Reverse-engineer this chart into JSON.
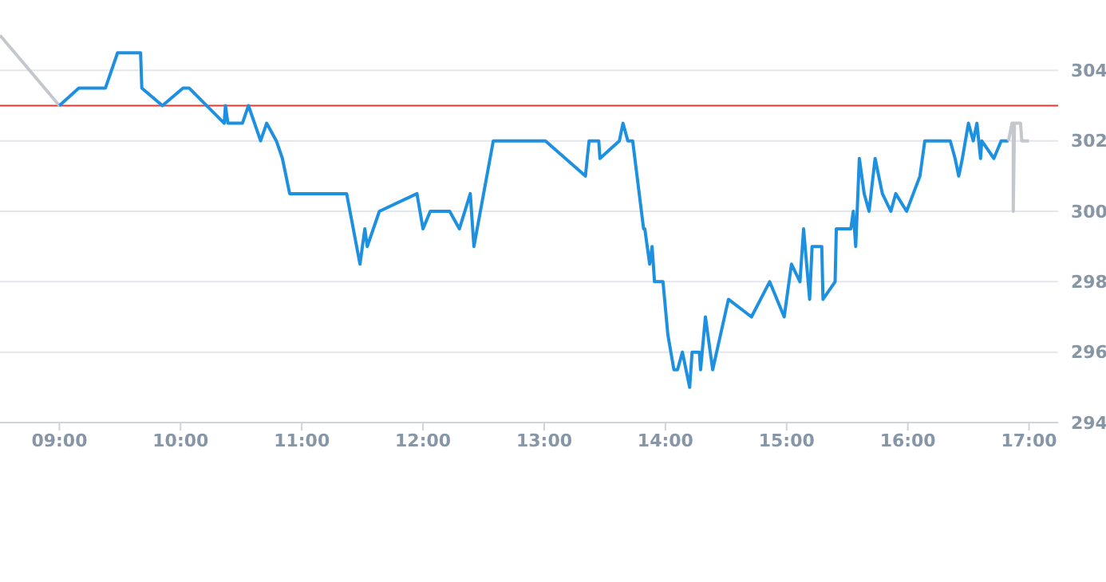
{
  "chart_data": {
    "type": "line",
    "xlim": [
      8.51,
      17.24
    ],
    "xticks": [
      {
        "value": 9,
        "label": "09:00"
      },
      {
        "value": 10,
        "label": "10:00"
      },
      {
        "value": 11,
        "label": "11:00"
      },
      {
        "value": 12,
        "label": "12:00"
      },
      {
        "value": 13,
        "label": "13:00"
      },
      {
        "value": 14,
        "label": "14:00"
      },
      {
        "value": 15,
        "label": "15:00"
      },
      {
        "value": 16,
        "label": "16:00"
      },
      {
        "value": 17,
        "label": "17:00"
      }
    ],
    "ylim": [
      294,
      306
    ],
    "yticks": [
      294,
      296,
      298,
      300,
      302,
      304
    ],
    "grid": "y",
    "marker": "none",
    "line_style": "solid",
    "ref_lines": [
      {
        "axis": "y",
        "value": 303,
        "color": "#e53935"
      }
    ],
    "series": [
      {
        "color": "#c4c8cc",
        "x": [
          8.51,
          9.0
        ],
        "values": [
          305,
          303
        ]
      },
      {
        "color": "#1e90e0",
        "x": [
          9.0,
          9.16,
          9.38,
          9.48,
          9.67,
          9.68,
          9.85,
          10.02,
          10.07,
          10.36,
          10.37,
          10.39,
          10.51,
          10.56,
          10.66,
          10.71,
          10.79,
          10.84,
          10.9,
          11.37,
          11.48,
          11.52,
          11.54,
          11.64,
          11.95,
          12.0,
          12.06,
          12.22,
          12.3,
          12.39,
          12.42,
          12.58,
          13.01,
          13.34,
          13.37,
          13.45,
          13.46,
          13.62,
          13.65,
          13.69,
          13.73,
          13.82,
          13.83,
          13.87,
          13.89,
          13.91,
          13.98,
          14.02,
          14.07,
          14.1,
          14.14,
          14.2,
          14.22,
          14.28,
          14.29,
          14.33,
          14.39,
          14.52,
          14.71,
          14.86,
          14.98,
          15.04,
          15.11,
          15.14,
          15.19,
          15.21,
          15.29,
          15.3,
          15.4,
          15.41,
          15.53,
          15.55,
          15.57,
          15.6,
          15.64,
          15.68,
          15.73,
          15.79,
          15.86,
          15.9,
          15.99,
          16.1,
          16.14,
          16.35,
          16.39,
          16.42,
          16.45,
          16.5,
          16.54,
          16.57,
          16.6,
          16.61,
          16.71,
          16.77,
          16.83
        ],
        "values": [
          303,
          303.5,
          303.5,
          304.5,
          304.5,
          303.5,
          303,
          303.5,
          303.5,
          302.5,
          303,
          302.5,
          302.5,
          303,
          302,
          302.5,
          302,
          301.5,
          300.5,
          300.5,
          298.5,
          299.5,
          299,
          300,
          300.5,
          299.5,
          300,
          300,
          299.5,
          300.5,
          299,
          302,
          302,
          301,
          302,
          302,
          301.5,
          302,
          302.5,
          302,
          302,
          299.5,
          299.5,
          298.5,
          299,
          298,
          298,
          296.5,
          295.5,
          295.5,
          296,
          295,
          296,
          296,
          295.5,
          297,
          295.5,
          297.5,
          297,
          298,
          297,
          298.5,
          298,
          299.5,
          297.5,
          299,
          299,
          297.5,
          298,
          299.5,
          299.5,
          300,
          299,
          301.5,
          300.5,
          300,
          301.5,
          300.5,
          300,
          300.5,
          300,
          301,
          302,
          302,
          301.5,
          301,
          301.5,
          302.5,
          302,
          302.5,
          301.5,
          302,
          301.5,
          302,
          302
        ]
      },
      {
        "color": "#c4c8cc",
        "x": [
          16.83,
          16.86,
          16.87,
          16.87,
          16.88,
          16.9,
          16.93,
          16.94,
          17.0
        ],
        "values": [
          302,
          302.5,
          302.5,
          300,
          302.5,
          302.5,
          302.5,
          302,
          302
        ]
      }
    ]
  }
}
